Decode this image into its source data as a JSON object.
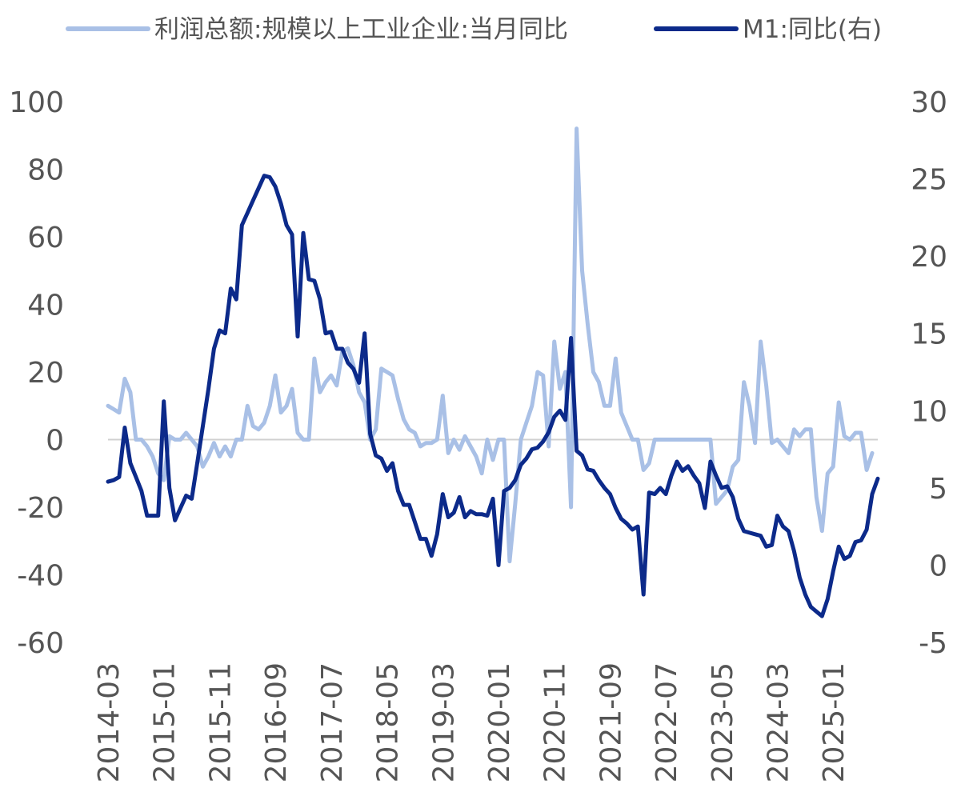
{
  "chart_data": {
    "type": "line",
    "legend": [
      {
        "label": "利润总额:规模以上工业企业:当月同比",
        "series": "profit"
      },
      {
        "label": "M1:同比(右)",
        "series": "m1"
      }
    ],
    "x_ticks": [
      "2014-03",
      "2015-01",
      "2015-11",
      "2016-09",
      "2017-07",
      "2018-05",
      "2019-03",
      "2020-01",
      "2020-11",
      "2021-09",
      "2022-07",
      "2023-05",
      "2024-03",
      "2025-01"
    ],
    "left_axis": {
      "min": -60,
      "max": 100,
      "step": 20,
      "ticks": [
        "100",
        "80",
        "60",
        "40",
        "20",
        "0",
        "-20",
        "-40",
        "-60"
      ]
    },
    "right_axis": {
      "min": -5,
      "max": 30,
      "step": 5,
      "ticks": [
        "30",
        "25",
        "20",
        "15",
        "10",
        "5",
        "0",
        "-5"
      ]
    },
    "series": [
      {
        "name": "利润总额:规模以上工业企业:当月同比",
        "axis": "left",
        "color": "#a9c0e6",
        "start": "2014-03",
        "values": [
          10,
          9,
          8,
          18,
          14,
          0,
          0,
          -2,
          -5,
          -10,
          -12,
          1,
          0,
          0,
          2,
          0,
          -2,
          -8,
          -5,
          -1,
          -5,
          -2,
          -5,
          0,
          0,
          10,
          4,
          3,
          5,
          10,
          19,
          8,
          10,
          15,
          2,
          0,
          0,
          24,
          14,
          17,
          19,
          16,
          26,
          27,
          22,
          14,
          11,
          0,
          3,
          21,
          20,
          19,
          12,
          6,
          3,
          2,
          -2,
          -1,
          -1,
          0,
          13,
          -4,
          0,
          -3,
          1,
          -2,
          -5,
          -10,
          0,
          -6,
          0,
          0,
          -36,
          -19,
          0,
          5,
          10,
          20,
          19,
          -2,
          29,
          15,
          20,
          -20,
          92,
          50,
          34,
          20,
          17,
          10,
          10,
          24,
          8,
          4,
          0,
          0,
          -9,
          -7,
          0,
          0,
          0,
          0,
          0,
          0,
          0,
          0,
          0,
          0,
          0,
          -19,
          -17,
          -15,
          -8,
          -6,
          17,
          10,
          -1,
          29,
          16,
          -1,
          0,
          -2,
          -4,
          3,
          1,
          3,
          3,
          -17,
          -27,
          -10,
          -8,
          11,
          1,
          0,
          2,
          2,
          -9,
          -4
        ]
      },
      {
        "name": "M1:同比(右)",
        "axis": "right",
        "color": "#0c2a8a",
        "start": "2014-03",
        "values": [
          5.4,
          5.5,
          5.7,
          8.9,
          6.6,
          5.7,
          4.8,
          3.2,
          3.2,
          3.2,
          10.6,
          5.0,
          2.9,
          3.7,
          4.5,
          4.3,
          6.6,
          9.0,
          11.4,
          14.0,
          15.2,
          15.0,
          17.9,
          17.2,
          22.0,
          22.8,
          23.6,
          24.4,
          25.2,
          25.1,
          24.5,
          23.4,
          22.0,
          21.4,
          14.8,
          21.5,
          18.5,
          18.4,
          17.2,
          15.0,
          15.1,
          14.0,
          14.0,
          13.1,
          12.7,
          11.8,
          15.0,
          8.5,
          7.1,
          6.9,
          6.1,
          6.6,
          4.8,
          3.9,
          3.9,
          2.8,
          1.7,
          1.7,
          0.6,
          2.0,
          4.6,
          3.1,
          3.4,
          4.4,
          3.1,
          3.5,
          3.3,
          3.3,
          3.2,
          4.3,
          0.0,
          4.8,
          5.0,
          5.5,
          6.5,
          6.9,
          7.5,
          7.6,
          8.0,
          8.6,
          9.6,
          10.0,
          9.4,
          14.7,
          7.4,
          7.1,
          6.2,
          6.1,
          5.5,
          5.0,
          4.6,
          3.7,
          3.0,
          2.7,
          2.3,
          2.5,
          -1.9,
          4.7,
          4.6,
          5.0,
          4.6,
          5.8,
          6.7,
          6.1,
          6.4,
          5.8,
          5.3,
          3.7,
          6.7,
          5.8,
          5.0,
          5.1,
          4.4,
          3.0,
          2.2,
          2.1,
          2.0,
          1.9,
          1.2,
          1.3,
          3.2,
          2.5,
          2.2,
          0.9,
          -0.8,
          -1.9,
          -2.7,
          -3.0,
          -3.3,
          -2.2,
          -0.4,
          1.2,
          0.4,
          0.6,
          1.5,
          1.6,
          2.3,
          4.6,
          5.6
        ]
      }
    ]
  }
}
